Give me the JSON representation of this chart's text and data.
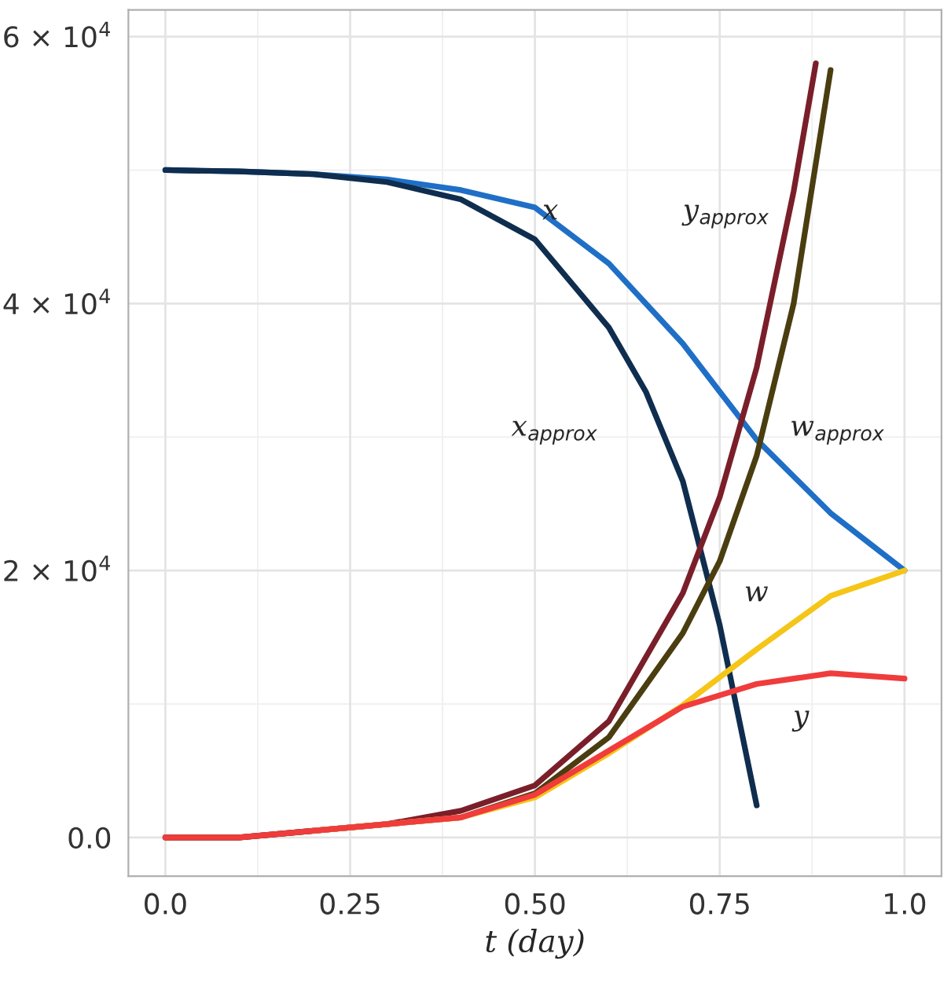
{
  "chart_data": {
    "type": "line",
    "xlabel": "t (day)",
    "xlim": [
      -0.05,
      1.05
    ],
    "ylim": [
      -2900,
      62000
    ],
    "xticks": [
      {
        "value": 0,
        "label": "0.0"
      },
      {
        "value": 0.25,
        "label": "0.25"
      },
      {
        "value": 0.5,
        "label": "0.50"
      },
      {
        "value": 0.75,
        "label": "0.75"
      },
      {
        "value": 1.0,
        "label": "1.0"
      }
    ],
    "yticks": [
      {
        "value": 0,
        "label": "0.0"
      },
      {
        "value": 20000,
        "label": "2 × 10$^{4}$"
      },
      {
        "value": 40000,
        "label": "4 × 10$^{4}$"
      },
      {
        "value": 60000,
        "label": "6 × 10$^{4}$"
      }
    ],
    "grid": true,
    "legend": false,
    "line_style": "solid",
    "marker": "none",
    "series": [
      {
        "name": "x",
        "color": "#1f6fc6",
        "x": [
          0,
          0.1,
          0.2,
          0.3,
          0.4,
          0.5,
          0.6,
          0.7,
          0.75,
          0.8,
          0.9,
          1.0
        ],
        "values": [
          50000,
          49900,
          49700,
          49300,
          48500,
          47200,
          43000,
          37000,
          33400,
          29800,
          24300,
          20000
        ]
      },
      {
        "name": "x$_{approx}$",
        "color": "#0f2d4e",
        "x": [
          0,
          0.1,
          0.2,
          0.3,
          0.4,
          0.5,
          0.6,
          0.65,
          0.7,
          0.75,
          0.8
        ],
        "values": [
          50000,
          49900,
          49700,
          49100,
          47800,
          44800,
          38200,
          33400,
          26700,
          15900,
          2400
        ]
      },
      {
        "name": "y$_{approx}$",
        "color": "#7a1f2a",
        "x": [
          0,
          0.1,
          0.2,
          0.3,
          0.4,
          0.5,
          0.6,
          0.7,
          0.75,
          0.8,
          0.85,
          0.88
        ],
        "values": [
          0,
          0,
          500,
          1000,
          2000,
          3900,
          8700,
          18300,
          25500,
          35200,
          48400,
          58000
        ]
      },
      {
        "name": "w$_{approx}$",
        "color": "#4a3e10",
        "x": [
          0,
          0.1,
          0.2,
          0.3,
          0.4,
          0.5,
          0.6,
          0.7,
          0.75,
          0.8,
          0.85,
          0.9
        ],
        "values": [
          0,
          0,
          500,
          1000,
          1500,
          3300,
          7500,
          15300,
          20700,
          28600,
          40000,
          57500
        ]
      },
      {
        "name": "w",
        "color": "#f5c518",
        "x": [
          0.2,
          0.3,
          0.4,
          0.5,
          0.6,
          0.7,
          0.8,
          0.9,
          1.0
        ],
        "values": [
          500,
          1000,
          1500,
          3000,
          6300,
          9900,
          14100,
          18100,
          20000
        ]
      },
      {
        "name": "y",
        "color": "#f03c3c",
        "x": [
          0,
          0.1,
          0.2,
          0.3,
          0.4,
          0.5,
          0.6,
          0.7,
          0.8,
          0.9,
          1.0
        ],
        "values": [
          0,
          0,
          500,
          1000,
          1500,
          3200,
          6500,
          9800,
          11500,
          12300,
          11900
        ]
      }
    ]
  }
}
